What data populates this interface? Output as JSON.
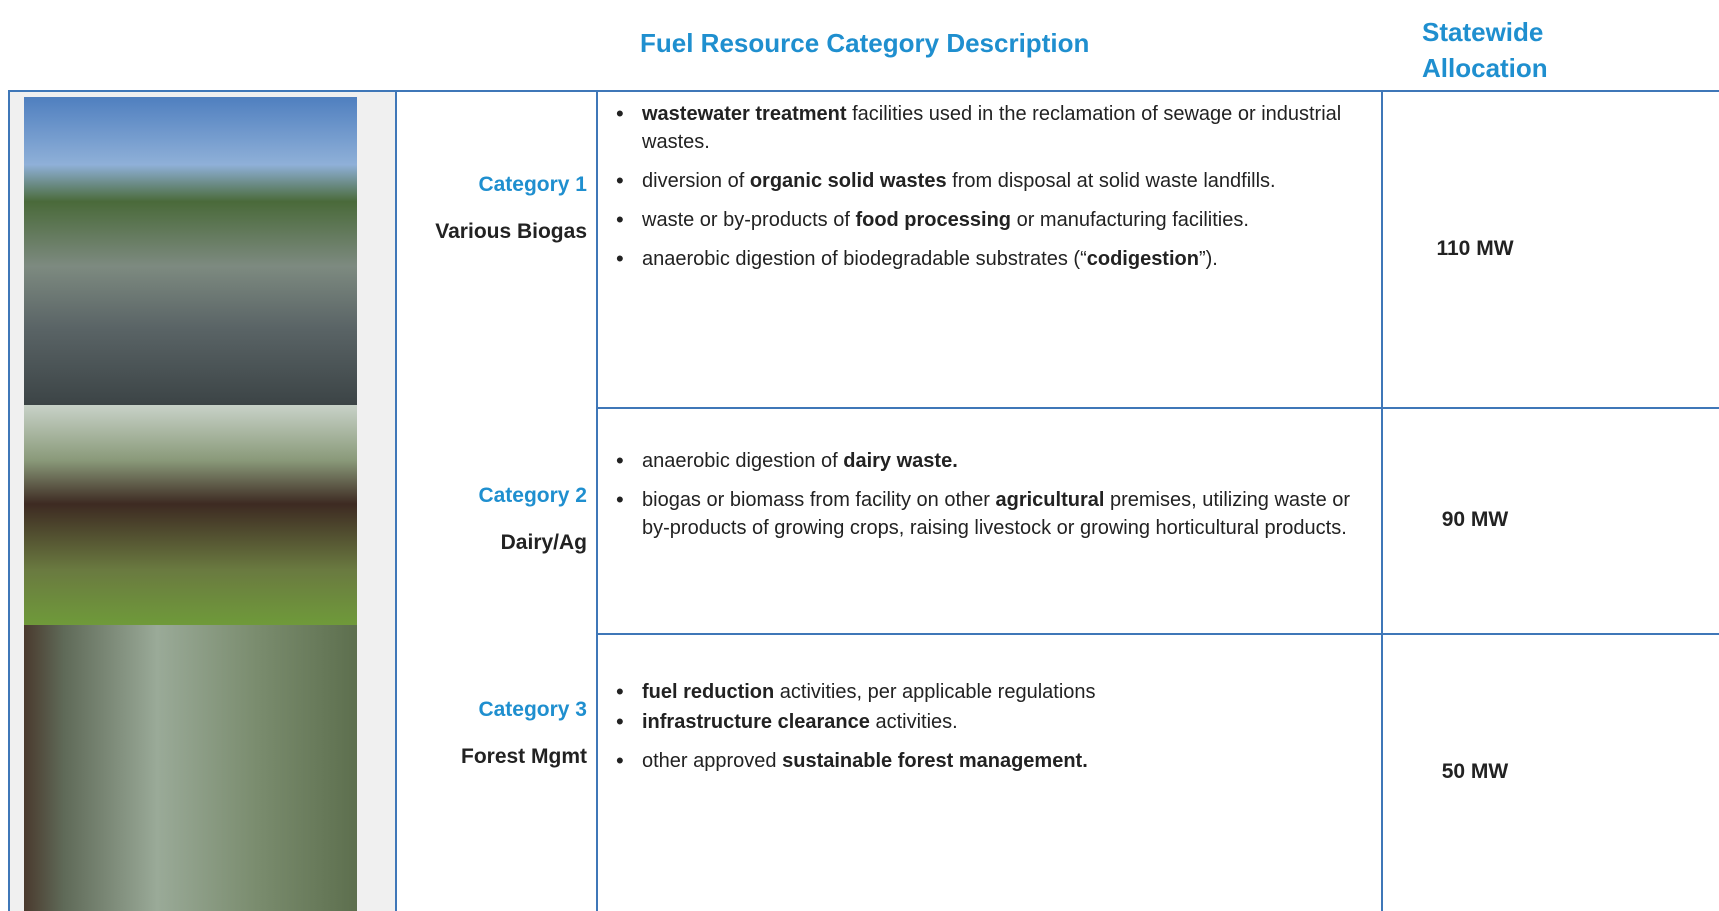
{
  "header": {
    "description": "Fuel Resource Category Description",
    "allocation": "Statewide Allocation"
  },
  "rows": [
    {
      "category": "Category 1",
      "name": "Various Biogas",
      "bullets": [
        [
          {
            "text": "wastewater treatment",
            "bold": true
          },
          {
            "text": " facilities used in the reclamation of sewage or industrial wastes."
          }
        ],
        [
          {
            "text": "diversion of "
          },
          {
            "text": "organic solid wastes",
            "bold": true
          },
          {
            "text": " from disposal at solid waste landfills."
          }
        ],
        [
          {
            "text": "waste or by-products of "
          },
          {
            "text": "food processing",
            "bold": true
          },
          {
            "text": " or manufacturing facilities."
          }
        ],
        [
          {
            "text": "anaerobic digestion of biodegradable substrates (“"
          },
          {
            "text": "codigestion",
            "bold": true
          },
          {
            "text": "”)."
          }
        ]
      ],
      "allocation": "110 MW"
    },
    {
      "category": "Category 2",
      "name": "Dairy/Ag",
      "bullets": [
        [
          {
            "text": "anaerobic digestion of "
          },
          {
            "text": "dairy waste.",
            "bold": true
          }
        ],
        [
          {
            "text": "biogas or biomass from facility on other "
          },
          {
            "text": "agricultural",
            "bold": true
          },
          {
            "text": " premises, utilizing waste or by-products of growing crops, raising livestock or growing horticultural products."
          }
        ]
      ],
      "allocation": "90 MW"
    },
    {
      "category": "Category 3",
      "name": "Forest Mgmt",
      "bullets": [
        [
          {
            "text": "fuel reduction",
            "bold": true
          },
          {
            "text": " activities, per applicable regulations"
          }
        ],
        [
          {
            "text": "infrastructure clearance",
            "bold": true
          },
          {
            "text": " activities."
          }
        ],
        [
          {
            "text": "other approved "
          },
          {
            "text": "sustainable forest management.",
            "bold": true
          }
        ]
      ],
      "allocation": "50 MW"
    }
  ]
}
